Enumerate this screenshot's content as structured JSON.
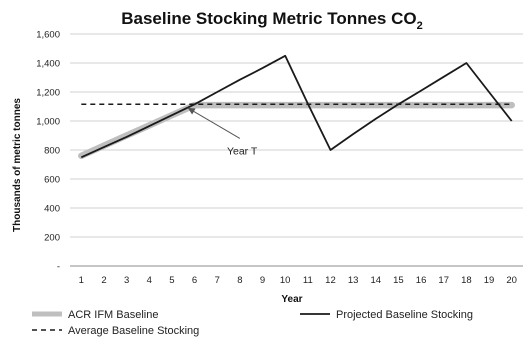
{
  "chart_data": {
    "type": "line",
    "title": "Baseline Stocking Metric Tonnes CO",
    "title_subscript": "2",
    "xlabel": "Year",
    "ylabel": "Thousands of metric tonnes",
    "ylim": [
      0,
      1600
    ],
    "grid": "horizontal",
    "legend_position": "bottom",
    "categories": [
      "1",
      "2",
      "3",
      "4",
      "5",
      "6",
      "7",
      "8",
      "9",
      "10",
      "11",
      "12",
      "13",
      "14",
      "15",
      "16",
      "17",
      "18",
      "19",
      "20"
    ],
    "y_ticks": [
      {
        "value": 0,
        "label": "-"
      },
      {
        "value": 200,
        "label": "200"
      },
      {
        "value": 400,
        "label": "400"
      },
      {
        "value": 600,
        "label": "600"
      },
      {
        "value": 800,
        "label": "800"
      },
      {
        "value": 1000,
        "label": "1,000"
      },
      {
        "value": 1200,
        "label": "1,200"
      },
      {
        "value": 1400,
        "label": "1,400"
      },
      {
        "value": 1600,
        "label": "1,600"
      }
    ],
    "series": [
      {
        "name": "ACR IFM Baseline",
        "style": "thick-gray",
        "color": "#bfbfbf",
        "points": [
          [
            1,
            760
          ],
          [
            2,
            830
          ],
          [
            3,
            900
          ],
          [
            4,
            970
          ],
          [
            5,
            1040
          ],
          [
            6,
            1110
          ],
          [
            7,
            1110
          ],
          [
            8,
            1110
          ],
          [
            9,
            1110
          ],
          [
            10,
            1110
          ],
          [
            11,
            1110
          ],
          [
            12,
            1110
          ],
          [
            13,
            1110
          ],
          [
            14,
            1110
          ],
          [
            15,
            1110
          ],
          [
            16,
            1110
          ],
          [
            17,
            1110
          ],
          [
            18,
            1110
          ],
          [
            19,
            1110
          ],
          [
            20,
            1110
          ]
        ]
      },
      {
        "name": "Projected Baseline Stocking",
        "style": "solid",
        "color": "#1a1a1a",
        "points": [
          [
            1,
            750
          ],
          [
            2,
            820
          ],
          [
            3,
            890
          ],
          [
            4,
            965
          ],
          [
            5,
            1040
          ],
          [
            6,
            1115
          ],
          [
            7,
            1200
          ],
          [
            8,
            1285
          ],
          [
            9,
            1365
          ],
          [
            10,
            1450
          ],
          [
            11,
            1120
          ],
          [
            12,
            800
          ],
          [
            13,
            910
          ],
          [
            14,
            1015
          ],
          [
            15,
            1115
          ],
          [
            16,
            1210
          ],
          [
            17,
            1305
          ],
          [
            18,
            1400
          ],
          [
            19,
            1200
          ],
          [
            20,
            1000
          ]
        ]
      },
      {
        "name": "Average Baseline Stocking",
        "style": "dashed",
        "color": "#1a1a1a",
        "points": [
          [
            1,
            1115
          ],
          [
            20,
            1115
          ]
        ]
      }
    ],
    "annotations": [
      {
        "text": "Year T",
        "target_x": 5.7,
        "target_y": 1090
      }
    ]
  }
}
